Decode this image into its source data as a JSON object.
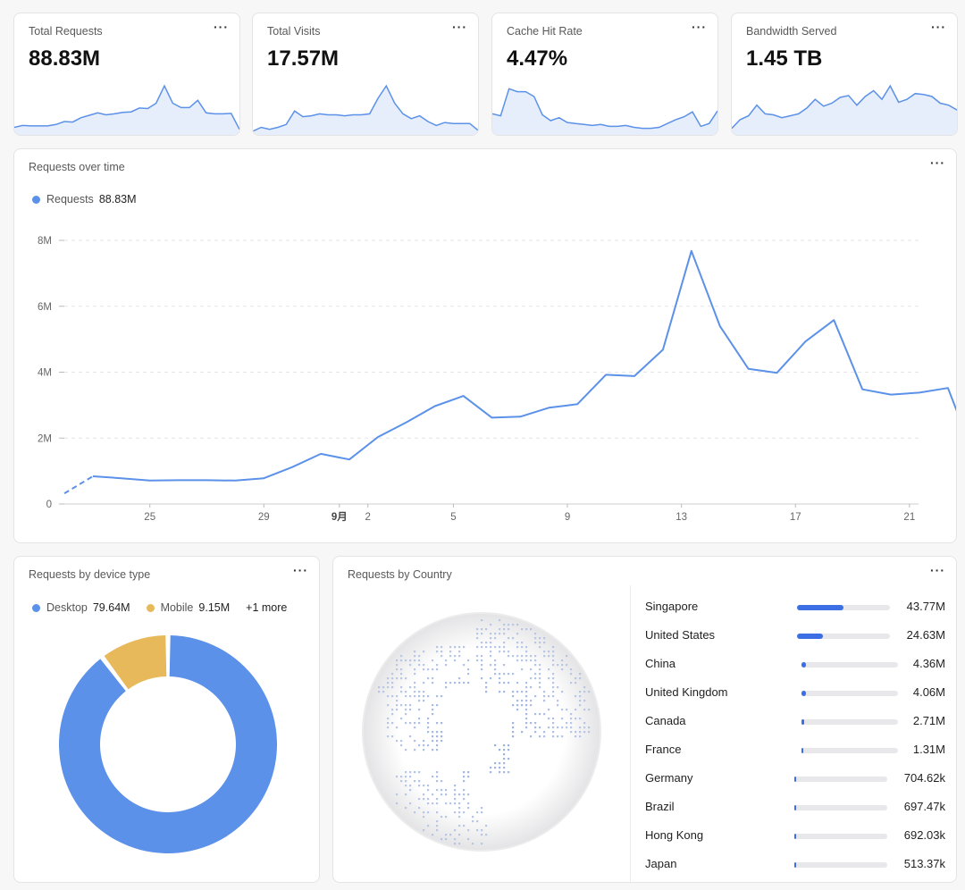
{
  "stats": [
    {
      "title": "Total Requests",
      "value": "88.83M",
      "spark": [
        0.12,
        0.16,
        0.15,
        0.15,
        0.15,
        0.18,
        0.24,
        0.23,
        0.32,
        0.37,
        0.42,
        0.38,
        0.4,
        0.43,
        0.44,
        0.52,
        0.51,
        0.62,
        0.98,
        0.62,
        0.53,
        0.53,
        0.68,
        0.42,
        0.4,
        0.4,
        0.41,
        0.08
      ]
    },
    {
      "title": "Total Visits",
      "value": "17.57M",
      "spark": [
        0.04,
        0.12,
        0.08,
        0.12,
        0.18,
        0.46,
        0.34,
        0.36,
        0.4,
        0.38,
        0.38,
        0.36,
        0.38,
        0.38,
        0.4,
        0.72,
        0.98,
        0.62,
        0.4,
        0.3,
        0.36,
        0.24,
        0.16,
        0.22,
        0.2,
        0.2,
        0.2,
        0.06
      ]
    },
    {
      "title": "Cache Hit Rate",
      "value": "4.47%",
      "spark": [
        0.4,
        0.36,
        0.92,
        0.86,
        0.86,
        0.76,
        0.38,
        0.26,
        0.32,
        0.22,
        0.2,
        0.18,
        0.16,
        0.18,
        0.14,
        0.14,
        0.16,
        0.12,
        0.1,
        0.1,
        0.12,
        0.2,
        0.28,
        0.34,
        0.44,
        0.14,
        0.2,
        0.46
      ]
    },
    {
      "title": "Bandwidth Served",
      "value": "1.45 TB",
      "spark": [
        0.1,
        0.28,
        0.36,
        0.58,
        0.4,
        0.38,
        0.32,
        0.36,
        0.4,
        0.52,
        0.7,
        0.56,
        0.62,
        0.74,
        0.78,
        0.58,
        0.76,
        0.88,
        0.7,
        0.98,
        0.64,
        0.7,
        0.82,
        0.8,
        0.76,
        0.62,
        0.58,
        0.48
      ]
    }
  ],
  "main_chart": {
    "title": "Requests over time",
    "legend_label": "Requests",
    "legend_value": "88.83M"
  },
  "chart_data": [
    {
      "type": "line",
      "series": [
        {
          "name": "Requests",
          "values": [
            0.32,
            0.84,
            0.78,
            0.71,
            0.72,
            0.72,
            0.71,
            0.78,
            1.12,
            1.52,
            1.35,
            2.03,
            2.48,
            2.97,
            3.28,
            2.62,
            2.65,
            2.92,
            3.03,
            3.92,
            3.88,
            4.68,
            7.68,
            5.4,
            4.1,
            3.98,
            4.93,
            5.58,
            3.48,
            3.32,
            3.38,
            3.52,
            1.28
          ]
        }
      ],
      "x_tick_labels": [
        {
          "index": 3,
          "label": "25"
        },
        {
          "index": 7,
          "label": "29"
        },
        {
          "index": 9.65,
          "label": "9月"
        },
        {
          "index": 10.65,
          "label": "2"
        },
        {
          "index": 13.65,
          "label": "5"
        },
        {
          "index": 17.65,
          "label": "9"
        },
        {
          "index": 21.65,
          "label": "13"
        },
        {
          "index": 25.65,
          "label": "17"
        },
        {
          "index": 29.65,
          "label": "21"
        }
      ],
      "y_ticks": [
        {
          "value": 0,
          "label": "0"
        },
        {
          "value": 2,
          "label": "2M"
        },
        {
          "value": 4,
          "label": "4M"
        },
        {
          "value": 6,
          "label": "6M"
        },
        {
          "value": 8,
          "label": "8M"
        }
      ],
      "ylim": [
        0,
        8
      ],
      "ylabel": "",
      "dashed_first_segment": true,
      "grid": true
    },
    {
      "type": "pie",
      "donut": true,
      "slices": [
        {
          "name": "Desktop",
          "value": 79.64,
          "color": "#5b91e8"
        },
        {
          "name": "Mobile",
          "value": 9.15,
          "color": "#e8b95a"
        }
      ]
    }
  ],
  "device_chart": {
    "title": "Requests by device type",
    "legend": [
      {
        "label": "Desktop",
        "value": "79.64M",
        "color": "#5b91e8"
      },
      {
        "label": "Mobile",
        "value": "9.15M",
        "color": "#e8b95a"
      }
    ],
    "more_label": "+1 more"
  },
  "country_chart": {
    "title": "Requests by Country",
    "countries": [
      {
        "name": "Singapore",
        "value": "43.77M",
        "share": 0.493
      },
      {
        "name": "United States",
        "value": "24.63M",
        "share": 0.277
      },
      {
        "name": "China",
        "value": "4.36M",
        "share": 0.049
      },
      {
        "name": "United Kingdom",
        "value": "4.06M",
        "share": 0.046
      },
      {
        "name": "Canada",
        "value": "2.71M",
        "share": 0.031
      },
      {
        "name": "France",
        "value": "1.31M",
        "share": 0.015
      },
      {
        "name": "Germany",
        "value": "704.62k",
        "share": 0.008
      },
      {
        "name": "Brazil",
        "value": "697.47k",
        "share": 0.008
      },
      {
        "name": "Hong Kong",
        "value": "692.03k",
        "share": 0.008
      },
      {
        "name": "Japan",
        "value": "513.37k",
        "share": 0.006
      }
    ]
  },
  "colors": {
    "accent": "#5b91e8",
    "bar": "#3b6fe3",
    "mobile": "#e8b95a"
  },
  "menu_glyph": "···"
}
